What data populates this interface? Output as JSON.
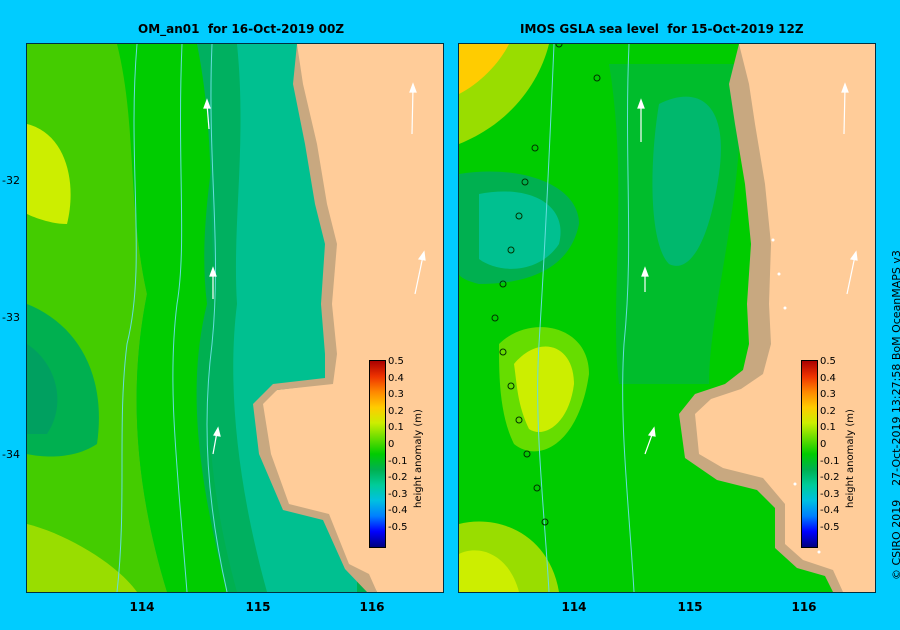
{
  "panels": [
    {
      "title": "OM_an01  for 16-Oct-2019 00Z",
      "colorbar": {
        "label": "height anomaly (m)",
        "ticks": [
          "0.5",
          "0.4",
          "0.3",
          "0.2",
          "0.1",
          "0",
          "-0.1",
          "-0.2",
          "-0.3",
          "-0.4",
          "-0.5"
        ]
      }
    },
    {
      "title": "IMOS GSLA sea level  for 15-Oct-2019 12Z",
      "colorbar": {
        "label": "height anomaly (m)",
        "ticks": [
          "0.5",
          "0.4",
          "0.3",
          "0.2",
          "0.1",
          "0",
          "-0.1",
          "-0.2",
          "-0.3",
          "-0.4",
          "-0.5"
        ]
      }
    }
  ],
  "axes": {
    "y_ticks": [
      "-32",
      "-33",
      "-34"
    ],
    "x_ticks": [
      "114",
      "115",
      "116"
    ]
  },
  "credit": "© CSIRO 2019    27-Oct-2019 13:27:58 BoM OceanMAPS v3",
  "colors": {
    "background": "#00ccff",
    "land": "#ffcc99",
    "shelf": "#c8a880",
    "anomaly_scale": [
      "#000080",
      "#0000ff",
      "#0080ff",
      "#00c0e0",
      "#00cc99",
      "#00b050",
      "#00cc00",
      "#66dd00",
      "#ccee00",
      "#ffcc00",
      "#ff8800",
      "#ee3300",
      "#aa0000"
    ]
  }
}
